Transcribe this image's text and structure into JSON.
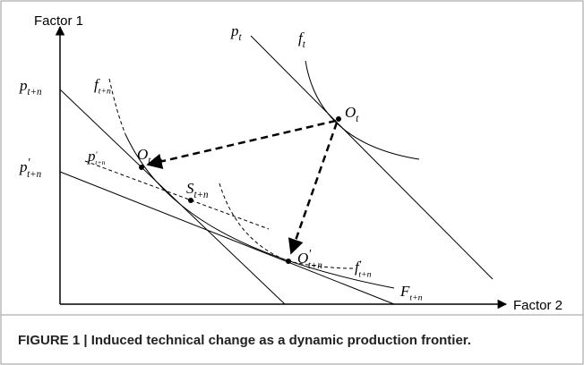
{
  "axes": {
    "y": "Factor 1",
    "x": "Factor 2"
  },
  "labels": [
    {
      "base": "p",
      "sub": "t"
    },
    {
      "base": "f",
      "sub": "t"
    },
    {
      "base": "O",
      "sub": "t"
    },
    {
      "base": "p",
      "sub": "t+n"
    },
    {
      "base": "p",
      "sup": "′",
      "sub": "t+n"
    },
    {
      "base": "f",
      "sub": "t+n"
    },
    {
      "base": "O",
      "sub": "t+n"
    },
    {
      "base": "p",
      "sup": "′",
      "sub": "t+n"
    },
    {
      "base": "S",
      "sub": "t+n"
    },
    {
      "base": "O",
      "sup": "′",
      "sub": "t+n"
    },
    {
      "base": "f",
      "sup": "′",
      "sub": "t+n"
    },
    {
      "base": "F",
      "sub": "t+n"
    }
  ],
  "caption": "FIGURE 1 | Induced technical change as a dynamic production frontier."
}
